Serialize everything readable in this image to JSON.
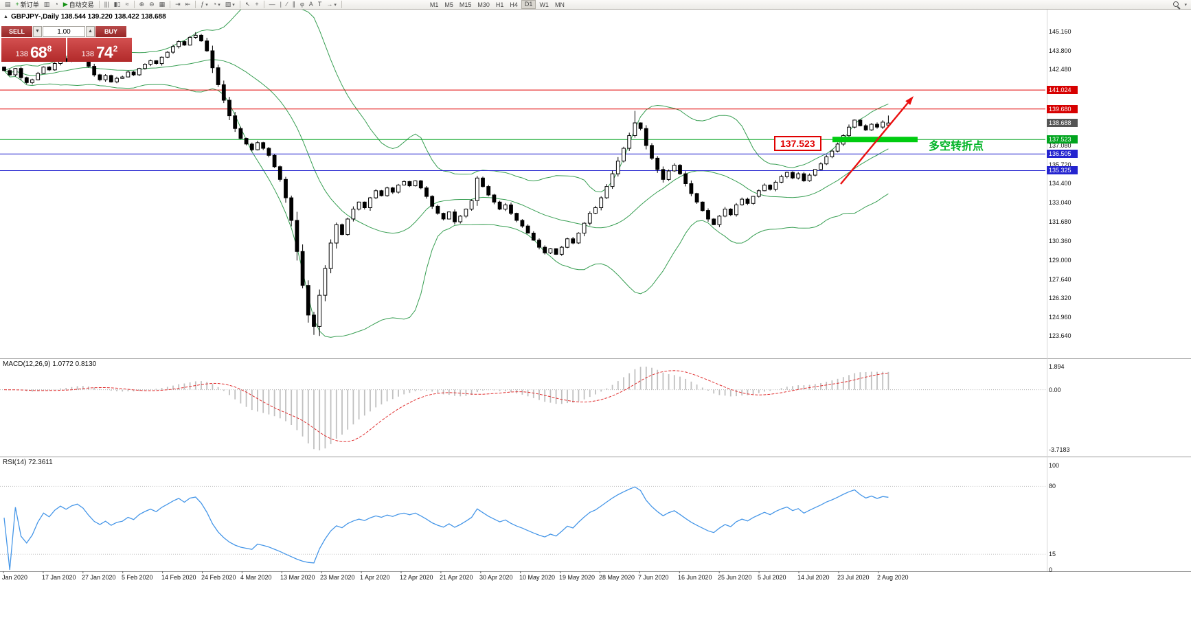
{
  "toolbar": {
    "items": [
      {
        "name": "new-chart",
        "glyph": "▤"
      },
      {
        "name": "new-order-button",
        "glyph": "+",
        "glyph_color": "#149114",
        "label": "新订单"
      },
      {
        "name": "market-watch",
        "glyph": "▥"
      },
      {
        "name": "history-center",
        "glyph": "◔"
      },
      {
        "name": "auto-trading-button",
        "glyph": "▶",
        "glyph_color": "#149114",
        "label": "自动交易"
      },
      {
        "sep": true
      },
      {
        "name": "bar-chart",
        "glyph": "|||"
      },
      {
        "name": "candlestick-chart",
        "glyph": "▮▯"
      },
      {
        "name": "line-chart",
        "glyph": "≈"
      },
      {
        "sep": true
      },
      {
        "name": "zoom-in",
        "glyph": "⊕"
      },
      {
        "name": "zoom-out",
        "glyph": "⊖"
      },
      {
        "name": "tile-windows",
        "glyph": "▦"
      },
      {
        "sep": true
      },
      {
        "name": "auto-scroll",
        "glyph": "⇥"
      },
      {
        "name": "chart-shift",
        "glyph": "⇤"
      },
      {
        "sep": true
      },
      {
        "name": "indicators",
        "glyph": "ƒ",
        "caret": true
      },
      {
        "name": "periods",
        "glyph": "◔",
        "caret": true
      },
      {
        "name": "templates",
        "glyph": "▧",
        "caret": true
      },
      {
        "sep": true
      },
      {
        "name": "cursor",
        "glyph": "↖"
      },
      {
        "name": "crosshair",
        "glyph": "+"
      },
      {
        "sep": true
      },
      {
        "name": "horizontal-line",
        "glyph": "—"
      },
      {
        "name": "vertical-line",
        "glyph": "|"
      },
      {
        "name": "trendline",
        "glyph": "∕"
      },
      {
        "name": "channel",
        "glyph": "∥"
      },
      {
        "name": "fibonacci",
        "glyph": "φ"
      },
      {
        "name": "text",
        "glyph": "A"
      },
      {
        "name": "label",
        "glyph": "T"
      },
      {
        "name": "arrows",
        "glyph": "→",
        "caret": true
      },
      {
        "sep": true
      }
    ],
    "timeframes": [
      {
        "label": "M1"
      },
      {
        "label": "M5"
      },
      {
        "label": "M15"
      },
      {
        "label": "M30"
      },
      {
        "label": "H1"
      },
      {
        "label": "H4"
      },
      {
        "label": "D1",
        "active": true
      },
      {
        "label": "W1"
      },
      {
        "label": "MN"
      }
    ]
  },
  "chart_header": {
    "collapse_icon": "▲",
    "symbol_info": "GBPJPY-,Daily  138.544 139.220 138.422 138.688"
  },
  "trade_panel": {
    "sell_label": "SELL",
    "buy_label": "BUY",
    "volume": "1.00",
    "vol_down_icon": "▼",
    "vol_up_icon": "▲",
    "bid": {
      "prefix": "138",
      "big": "68",
      "sup": "8"
    },
    "ask": {
      "prefix": "138",
      "big": "74",
      "sup": "2"
    }
  },
  "annotations": {
    "price_box": "137.523",
    "zone_label": "多空转折点"
  },
  "price_axis": {
    "ticks": [
      "145.160",
      "143.800",
      "142.480",
      "137.080",
      "135.720",
      "134.400",
      "133.040",
      "131.680",
      "130.360",
      "129.000",
      "127.640",
      "126.320",
      "124.960",
      "123.640"
    ],
    "badges": [
      {
        "text": "141.024",
        "price": 141.024,
        "bg": "#d70000"
      },
      {
        "text": "139.680",
        "price": 139.68,
        "bg": "#d70000"
      },
      {
        "text": "138.688",
        "price": 138.688,
        "bg": "#555555"
      },
      {
        "text": "137.523",
        "price": 137.523,
        "bg": "#00a41e"
      },
      {
        "text": "136.505",
        "price": 136.505,
        "bg": "#2424cf"
      },
      {
        "text": "135.325",
        "price": 135.325,
        "bg": "#2424cf"
      }
    ]
  },
  "macd_panel": {
    "header": "MACD(12,26,9) 1.0772 0.8130",
    "scale": [
      "1.894",
      "0.00",
      "-3.7183"
    ]
  },
  "rsi_panel": {
    "header": "RSI(14) 72.3611",
    "scale": [
      "100",
      "80",
      "15",
      "0"
    ]
  },
  "chart_data": {
    "type": "candlestick",
    "symbol": "GBPJPY-",
    "timeframe": "Daily",
    "current_ohlc": [
      138.544,
      139.22,
      138.422,
      138.688
    ],
    "closes": [
      142.4,
      142.1,
      142.55,
      141.9,
      141.55,
      141.75,
      142.2,
      142.65,
      142.45,
      142.9,
      143.25,
      143.05,
      143.4,
      143.6,
      143.3,
      142.7,
      142.1,
      141.75,
      142.05,
      141.6,
      141.85,
      141.95,
      142.3,
      142.1,
      142.55,
      142.85,
      143.1,
      142.9,
      143.35,
      143.7,
      144.1,
      144.45,
      144.2,
      144.75,
      144.9,
      144.5,
      143.8,
      142.6,
      141.4,
      140.3,
      139.2,
      138.3,
      137.6,
      137.2,
      136.8,
      137.3,
      136.9,
      136.4,
      135.6,
      134.7,
      133.4,
      131.8,
      129.6,
      127.2,
      125.1,
      124.3,
      126.5,
      128.4,
      130.2,
      131.5,
      130.8,
      131.9,
      132.6,
      133.1,
      132.7,
      133.4,
      133.9,
      133.55,
      134.1,
      133.8,
      134.3,
      134.55,
      134.25,
      134.6,
      134.1,
      133.5,
      132.8,
      132.3,
      131.9,
      132.4,
      131.7,
      132.1,
      132.6,
      133.2,
      134.8,
      134.2,
      133.6,
      133.1,
      132.6,
      132.9,
      132.3,
      131.8,
      131.4,
      130.9,
      130.4,
      129.9,
      129.5,
      129.8,
      129.4,
      129.9,
      130.5,
      130.2,
      130.9,
      131.6,
      132.3,
      132.7,
      133.4,
      134.2,
      135.1,
      136.0,
      136.9,
      137.8,
      138.7,
      138.3,
      137.1,
      136.2,
      135.4,
      134.7,
      135.3,
      135.7,
      135.1,
      134.4,
      133.7,
      133.1,
      132.5,
      131.9,
      131.5,
      132.1,
      132.6,
      132.2,
      132.9,
      133.3,
      133.0,
      133.5,
      133.9,
      134.3,
      134.0,
      134.5,
      134.9,
      135.2,
      134.8,
      135.1,
      134.6,
      135.0,
      135.4,
      135.8,
      136.3,
      136.7,
      137.2,
      137.8,
      138.4,
      138.9,
      138.5,
      138.2,
      138.6,
      138.4,
      138.75,
      138.69
    ],
    "x_labels": [
      "Jan 2020",
      "17 Jan 2020",
      "27 Jan 2020",
      "5 Feb 2020",
      "14 Feb 2020",
      "24 Feb 2020",
      "4 Mar 2020",
      "13 Mar 2020",
      "23 Mar 2020",
      "1 Apr 2020",
      "12 Apr 2020",
      "21 Apr 2020",
      "30 Apr 2020",
      "10 May 2020",
      "19 May 2020",
      "28 May 2020",
      "7 Jun 2020",
      "16 Jun 2020",
      "25 Jun 2020",
      "5 Jul 2020",
      "14 Jul 2020",
      "23 Jul 2020",
      "2 Aug 2020"
    ],
    "y_range": [
      123.64,
      145.16
    ],
    "hlines": [
      {
        "price": 141.024,
        "color": "#e00000"
      },
      {
        "price": 139.68,
        "color": "#e00000"
      },
      {
        "price": 137.523,
        "color": "#00a41e"
      },
      {
        "price": 136.505,
        "color": "#2424cf"
      },
      {
        "price": 135.325,
        "color": "#2424cf"
      }
    ],
    "indicators": {
      "bollinger": {
        "period": 20,
        "deviation": 2,
        "color": "#379e52"
      },
      "macd": {
        "fast": 12,
        "slow": 26,
        "signal": 9,
        "value": 1.0772,
        "signal_value": 0.813,
        "scale_max": 1.894,
        "scale_min": -3.7183
      },
      "rsi": {
        "period": 14,
        "value": 72.3611,
        "levels": [
          80,
          15
        ]
      }
    }
  }
}
